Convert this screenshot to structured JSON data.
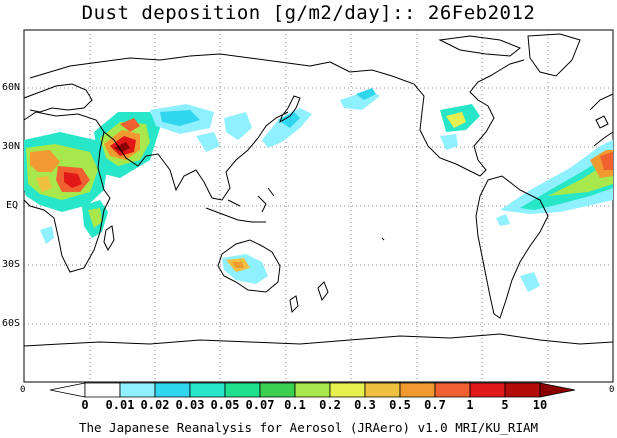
{
  "title": "Dust deposition [g/m2/day]:: 26Feb2012",
  "footer": "The Japanese Reanalysis for Aerosol (JRAero) v1.0 MRI/KU_RIAM",
  "lat_labels": [
    "60N",
    "30N",
    "EQ",
    "30S",
    "60S"
  ],
  "lon_edge_label": "0",
  "colorbar": {
    "levels": [
      "0",
      "0.01",
      "0.02",
      "0.03",
      "0.05",
      "0.07",
      "0.1",
      "0.2",
      "0.3",
      "0.5",
      "0.7",
      "1",
      "5",
      "10"
    ],
    "colors": [
      "#ffffff",
      "#ffffff",
      "#8ff0ff",
      "#2fd6ee",
      "#28e6c8",
      "#20e090",
      "#3cd050",
      "#a8e84a",
      "#e8f050",
      "#f0c040",
      "#f09a30",
      "#f06030",
      "#e01818",
      "#b40b0b",
      "#8a0000"
    ]
  }
}
